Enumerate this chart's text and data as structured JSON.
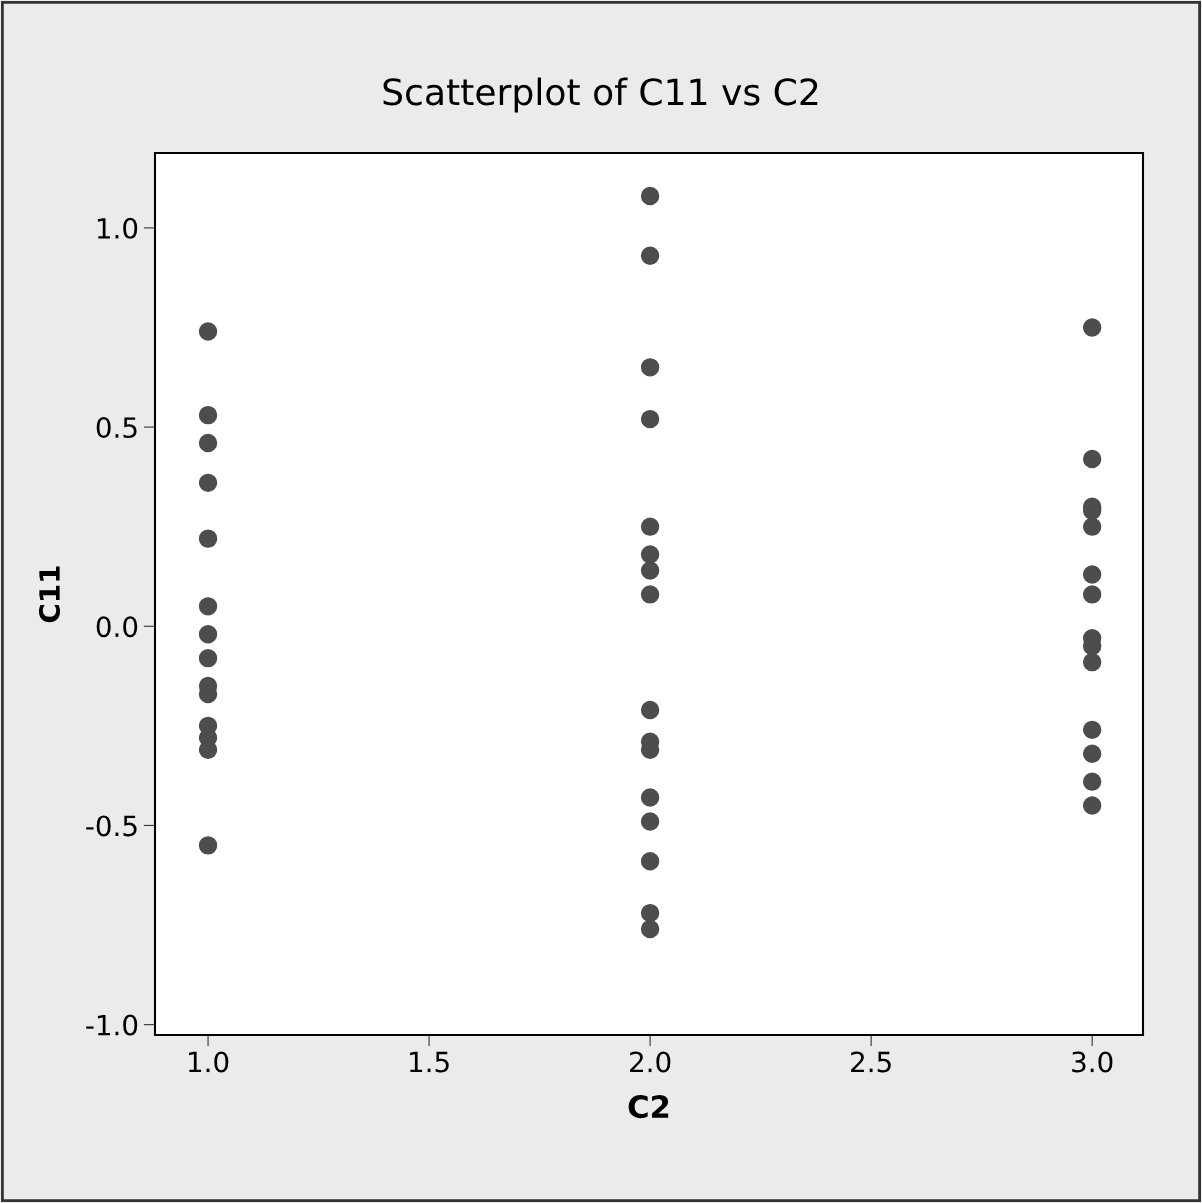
{
  "chart_data": {
    "type": "scatter",
    "title": "Scatterplot of C11 vs C2",
    "xlabel": "C2",
    "ylabel": "C11",
    "series": [
      {
        "color": "#4d4d4d",
        "x": [
          1,
          1,
          1,
          1,
          1,
          1,
          1,
          1,
          1,
          1,
          1,
          1,
          1,
          1,
          2,
          2,
          2,
          2,
          2,
          2,
          2,
          2,
          2,
          2,
          2,
          2,
          2,
          2,
          2,
          2,
          3,
          3,
          3,
          3,
          3,
          3,
          3,
          3,
          3,
          3,
          3,
          3,
          3,
          3
        ],
        "values": [
          0.74,
          0.53,
          0.46,
          0.36,
          0.22,
          0.05,
          -0.02,
          -0.08,
          -0.15,
          -0.17,
          -0.25,
          -0.28,
          -0.31,
          -0.55,
          1.08,
          0.93,
          0.65,
          0.52,
          0.25,
          0.18,
          0.14,
          0.08,
          -0.21,
          -0.29,
          -0.31,
          -0.43,
          -0.49,
          -0.59,
          -0.72,
          -0.76,
          0.75,
          0.42,
          0.3,
          0.29,
          0.25,
          0.13,
          0.08,
          -0.03,
          -0.05,
          -0.09,
          -0.26,
          -0.32,
          -0.39,
          -0.45
        ]
      }
    ],
    "xlim": [
      0.88,
      3.115
    ],
    "ylim": [
      -1.026,
      1.188
    ],
    "xticks": [
      {
        "value": 1.0,
        "label": "1.0"
      },
      {
        "value": 1.5,
        "label": "1.5"
      },
      {
        "value": 2.0,
        "label": "2.0"
      },
      {
        "value": 2.5,
        "label": "2.5"
      },
      {
        "value": 3.0,
        "label": "3.0"
      }
    ],
    "yticks": [
      {
        "value": -1.0,
        "label": "-1.0"
      },
      {
        "value": -0.5,
        "label": "-0.5"
      },
      {
        "value": 0.0,
        "label": "0.0"
      },
      {
        "value": 0.5,
        "label": "0.5"
      },
      {
        "value": 1.0,
        "label": "1.0"
      }
    ],
    "marker": "circle",
    "grid": false
  }
}
